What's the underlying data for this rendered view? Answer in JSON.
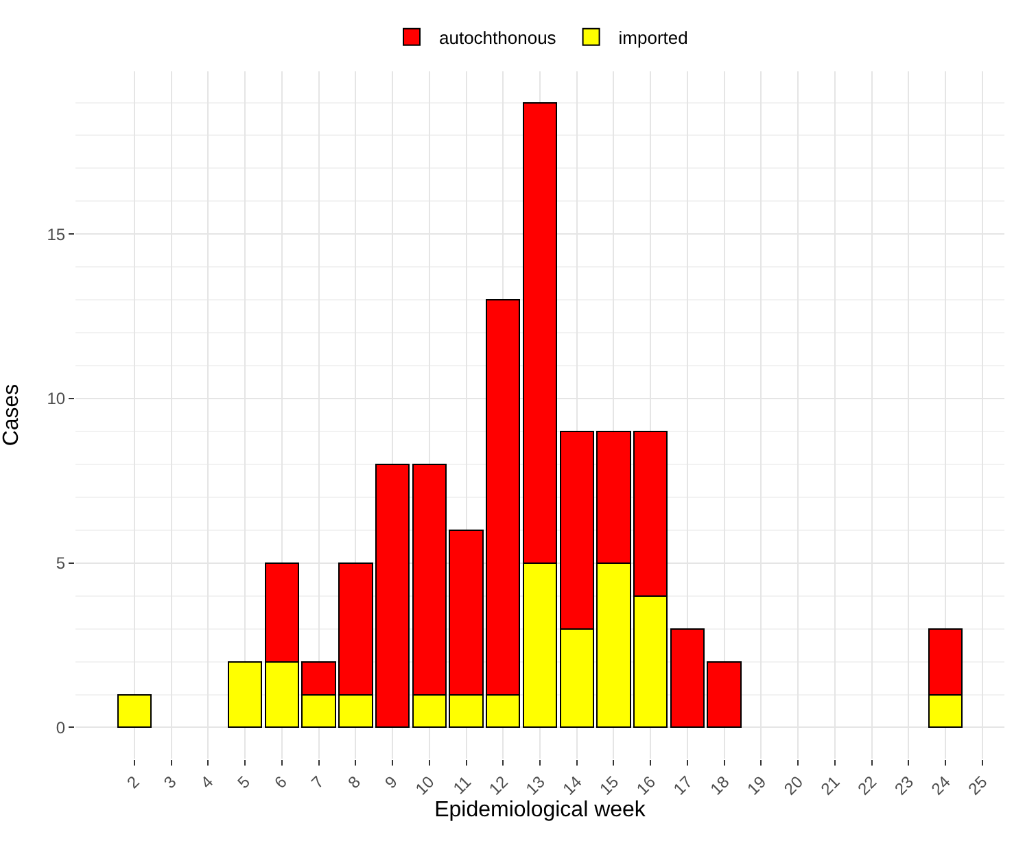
{
  "chart_data": {
    "type": "bar",
    "stacked": true,
    "xlabel": "Epidemiological week",
    "ylabel": "Cases",
    "x": [
      2,
      5,
      6,
      7,
      8,
      9,
      10,
      11,
      12,
      13,
      14,
      15,
      16,
      17,
      18,
      24
    ],
    "series": [
      {
        "name": "imported",
        "color": "#ffff00",
        "values": [
          1,
          2,
          2,
          1,
          1,
          null,
          1,
          1,
          1,
          5,
          3,
          5,
          4,
          null,
          null,
          1
        ]
      },
      {
        "name": "autochthonous",
        "color": "#ff0000",
        "values": [
          null,
          null,
          3,
          1,
          4,
          8,
          7,
          5,
          12,
          14,
          6,
          4,
          5,
          3,
          2,
          2
        ]
      }
    ],
    "xlim": [
      0.4,
      25.6
    ],
    "xticks": [
      2,
      3,
      4,
      5,
      6,
      7,
      8,
      9,
      10,
      11,
      12,
      13,
      14,
      15,
      16,
      17,
      18,
      19,
      20,
      21,
      22,
      23,
      24,
      25
    ],
    "ylim": [
      -0.95,
      19.95
    ],
    "yticks": [
      0,
      5,
      10,
      15
    ],
    "grid": true,
    "legend": "top"
  }
}
